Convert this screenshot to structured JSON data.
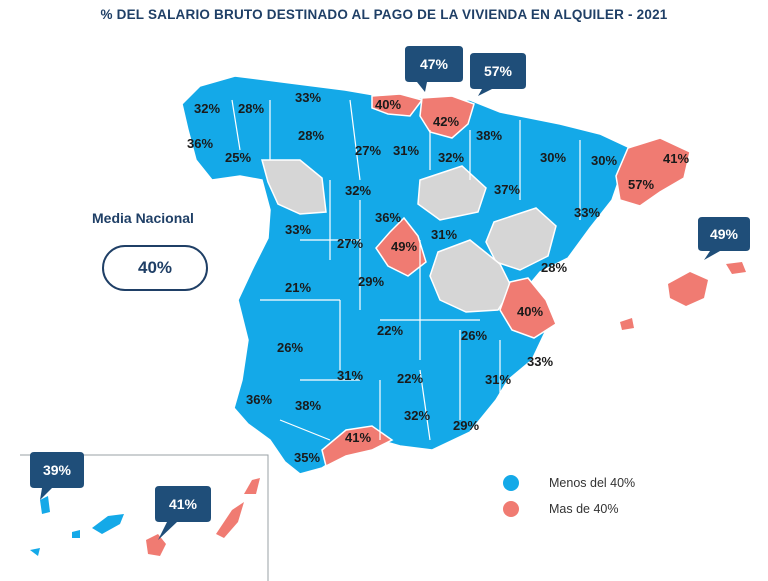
{
  "title": "% DEL SALARIO BRUTO DESTINADO AL PAGO DE LA VIVIENDA EN ALQUILER - 2021",
  "media": {
    "label": "Media Nacional",
    "value": "40%"
  },
  "legend": [
    {
      "label": "Menos del 40%",
      "color": "#14a9e8"
    },
    {
      "label": "Mas de 40%",
      "color": "#f07b72"
    }
  ],
  "colors": {
    "below": "#14a9e8",
    "above": "#f07b72",
    "nodata": "#d6d6d6",
    "callout": "#1f4e79"
  },
  "provinces": [
    {
      "name": "A Coruña",
      "value": "32%",
      "category": "below"
    },
    {
      "name": "Lugo",
      "value": "28%",
      "category": "below"
    },
    {
      "name": "Asturias",
      "value": "33%",
      "category": "below"
    },
    {
      "name": "Cantabria",
      "value": "40%",
      "category": "above"
    },
    {
      "name": "Bizkaia",
      "value": "47%",
      "category": "above"
    },
    {
      "name": "Gipuzkoa",
      "value": "57%",
      "category": "above"
    },
    {
      "name": "Álava",
      "value": "42%",
      "category": "above"
    },
    {
      "name": "Navarra",
      "value": "38%",
      "category": "below"
    },
    {
      "name": "Pontevedra",
      "value": "36%",
      "category": "below"
    },
    {
      "name": "Ourense",
      "value": "25%",
      "category": "below"
    },
    {
      "name": "León",
      "value": "28%",
      "category": "below"
    },
    {
      "name": "Palencia",
      "value": "27%",
      "category": "below"
    },
    {
      "name": "Burgos",
      "value": "31%",
      "category": "below"
    },
    {
      "name": "La Rioja",
      "value": "32%",
      "category": "below"
    },
    {
      "name": "Huesca",
      "value": "30%",
      "category": "below"
    },
    {
      "name": "Lleida",
      "value": "30%",
      "category": "below"
    },
    {
      "name": "Girona",
      "value": "41%",
      "category": "above"
    },
    {
      "name": "Barcelona",
      "value": "57%",
      "category": "above"
    },
    {
      "name": "Valladolid",
      "value": "32%",
      "category": "below"
    },
    {
      "name": "Zaragoza",
      "value": "37%",
      "category": "below"
    },
    {
      "name": "Tarragona",
      "value": "33%",
      "category": "below"
    },
    {
      "name": "Segovia",
      "value": "36%",
      "category": "below"
    },
    {
      "name": "Salamanca",
      "value": "33%",
      "category": "below"
    },
    {
      "name": "Ávila",
      "value": "27%",
      "category": "below"
    },
    {
      "name": "Madrid",
      "value": "49%",
      "category": "above"
    },
    {
      "name": "Guadalajara",
      "value": "31%",
      "category": "below"
    },
    {
      "name": "Baleares",
      "value": "49%",
      "category": "above"
    },
    {
      "name": "Castellón",
      "value": "28%",
      "category": "below"
    },
    {
      "name": "Cáceres",
      "value": "21%",
      "category": "below"
    },
    {
      "name": "Toledo",
      "value": "29%",
      "category": "below"
    },
    {
      "name": "Valencia",
      "value": "40%",
      "category": "above"
    },
    {
      "name": "Ciudad Real",
      "value": "22%",
      "category": "below"
    },
    {
      "name": "Albacete",
      "value": "26%",
      "category": "below"
    },
    {
      "name": "Badajoz",
      "value": "26%",
      "category": "below"
    },
    {
      "name": "Alicante",
      "value": "33%",
      "category": "below"
    },
    {
      "name": "Córdoba",
      "value": "31%",
      "category": "below"
    },
    {
      "name": "Jaén",
      "value": "22%",
      "category": "below"
    },
    {
      "name": "Murcia",
      "value": "31%",
      "category": "below"
    },
    {
      "name": "Huelva",
      "value": "36%",
      "category": "below"
    },
    {
      "name": "Sevilla",
      "value": "38%",
      "category": "below"
    },
    {
      "name": "Granada",
      "value": "32%",
      "category": "below"
    },
    {
      "name": "Almería",
      "value": "29%",
      "category": "below"
    },
    {
      "name": "Málaga",
      "value": "41%",
      "category": "above"
    },
    {
      "name": "Cádiz",
      "value": "35%",
      "category": "below"
    },
    {
      "name": "Santa Cruz de Tenerife",
      "value": "39%",
      "category": "below"
    },
    {
      "name": "Las Palmas",
      "value": "41%",
      "category": "above"
    }
  ]
}
